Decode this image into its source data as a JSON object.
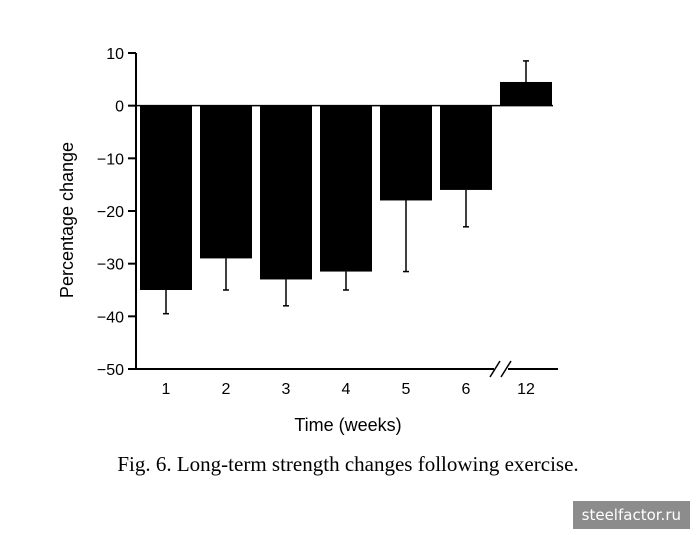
{
  "chart_data": {
    "type": "bar",
    "categories": [
      "1",
      "2",
      "3",
      "4",
      "5",
      "6",
      "12"
    ],
    "values": [
      -35,
      -29,
      -33,
      -31.5,
      -18,
      -16,
      4.5
    ],
    "error_tips": [
      -39.5,
      -35,
      -38,
      -35,
      -31.5,
      -23,
      8.5
    ],
    "xlabel": "Time (weeks)",
    "ylabel": "Percentage change",
    "ylim": [
      -50,
      10
    ],
    "yticks": [
      10,
      0,
      -10,
      -20,
      -30,
      -40,
      -50
    ],
    "ytick_labels": [
      "10",
      "0",
      "−10",
      "−20",
      "−30",
      "−40",
      "−50"
    ],
    "axis_break": "between 6 and 12",
    "grid": false,
    "legend": "none",
    "bar_color": "#000000"
  },
  "caption": "Fig. 6. Long-term strength changes following exercise.",
  "watermark": "steelfactor.ru"
}
